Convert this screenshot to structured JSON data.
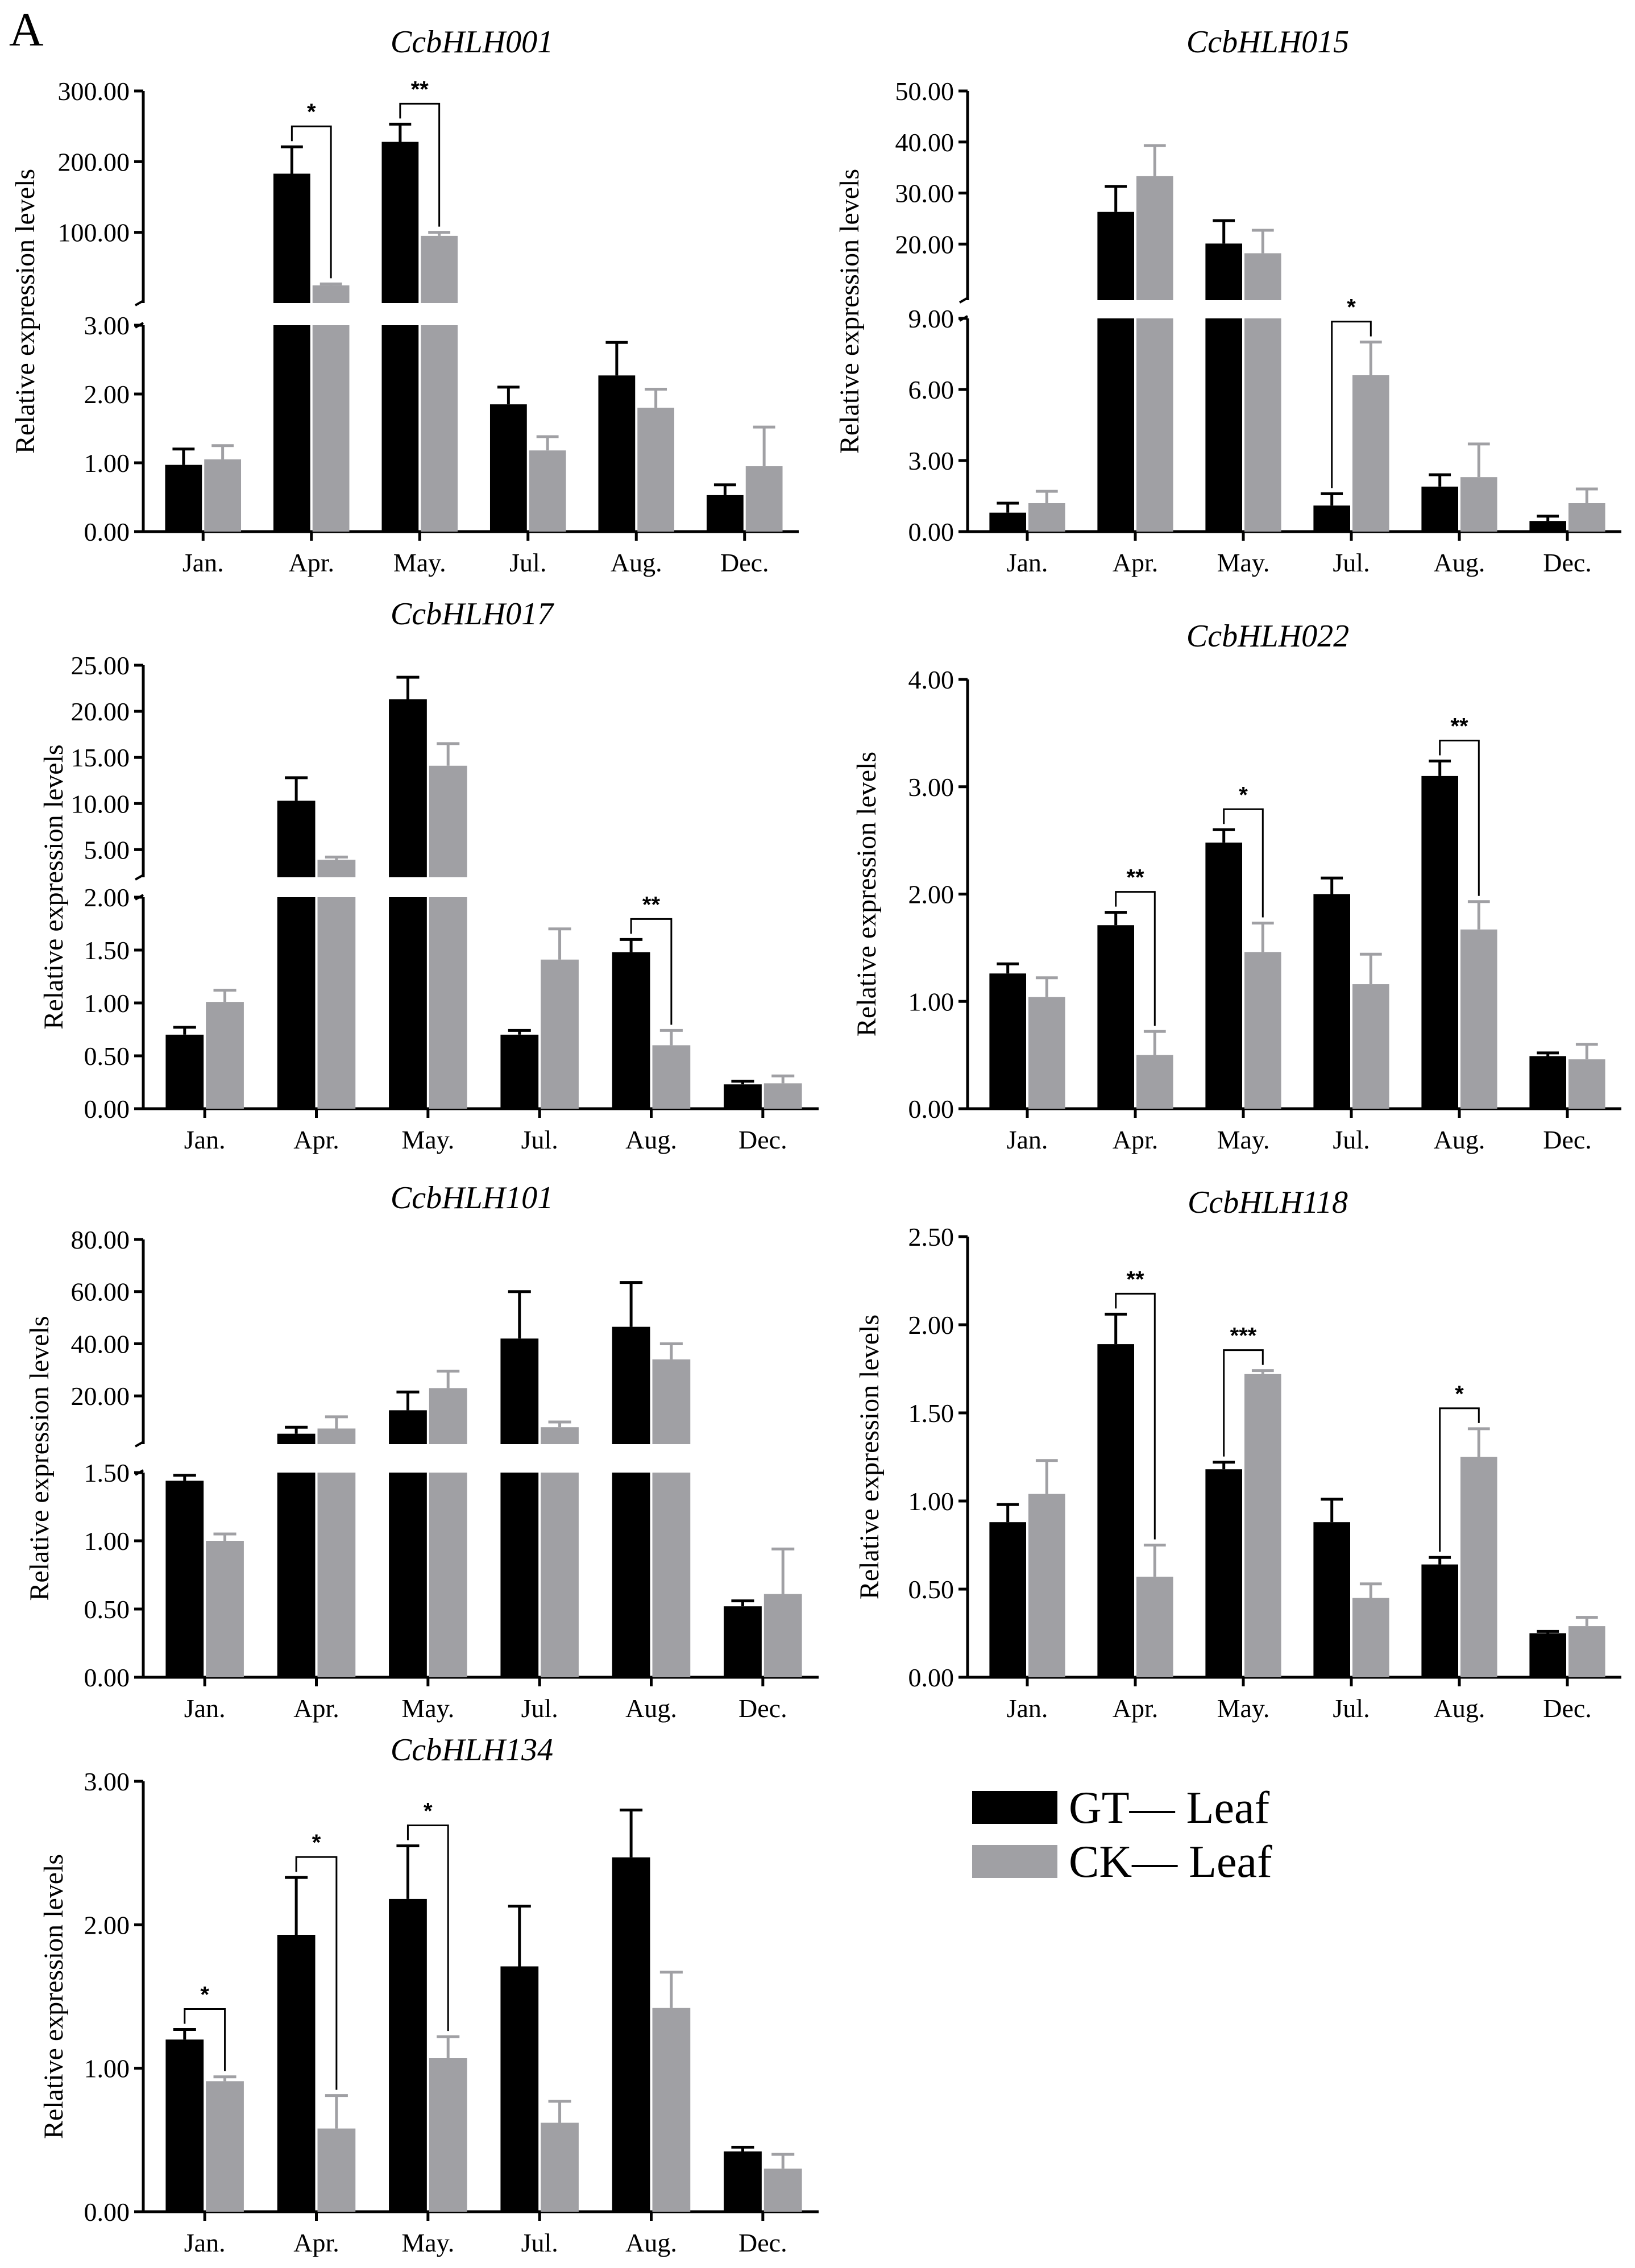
{
  "panel_label": "A",
  "colors": {
    "gt": "#000000",
    "ck": "#a0a0a4"
  },
  "legend": {
    "placement": "bottom-right",
    "items": [
      {
        "label": "GT— Leaf",
        "color": "#000000"
      },
      {
        "label": "CK— Leaf",
        "color": "#a0a0a4"
      }
    ]
  },
  "chart_data": [
    {
      "type": "bar",
      "title": "CcbHLH001",
      "ylabel": "Relative expression levels",
      "categories": [
        "Jan.",
        "Apr.",
        "May.",
        "Jul.",
        "Aug.",
        "Dec."
      ],
      "broken_axis": true,
      "lower_range": [
        0,
        3
      ],
      "lower_ticks": [
        "0.00",
        "1.00",
        "2.00",
        "3.00"
      ],
      "upper_range": [
        0,
        300
      ],
      "upper_ticks": [
        "100.00",
        "200.00",
        "300.00"
      ],
      "series": [
        {
          "name": "GT— Leaf",
          "values": [
            0.97,
            183,
            228,
            1.85,
            2.27,
            0.53
          ],
          "errors": [
            0.23,
            38,
            25,
            0.25,
            0.48,
            0.15
          ]
        },
        {
          "name": "CK— Leaf",
          "values": [
            1.05,
            25,
            95,
            1.18,
            1.8,
            0.95
          ],
          "errors": [
            0.2,
            2,
            5,
            0.2,
            0.27,
            0.57
          ]
        }
      ],
      "significance": [
        {
          "category": "Apr.",
          "label": "*"
        },
        {
          "category": "May.",
          "label": "**"
        }
      ]
    },
    {
      "type": "bar",
      "title": "CcbHLH015",
      "ylabel": "Relative expression levels",
      "categories": [
        "Jan.",
        "Apr.",
        "May.",
        "Jul.",
        "Aug.",
        "Dec."
      ],
      "broken_axis": true,
      "lower_range": [
        0,
        9
      ],
      "lower_ticks": [
        "0.00",
        "3.00",
        "6.00",
        "9.00"
      ],
      "upper_range": [
        9,
        50
      ],
      "upper_ticks": [
        "20.00",
        "30.00",
        "40.00",
        "50.00"
      ],
      "series": [
        {
          "name": "GT— Leaf",
          "values": [
            0.8,
            26.3,
            20.1,
            1.1,
            1.9,
            0.45
          ],
          "errors": [
            0.4,
            5,
            4.5,
            0.5,
            0.5,
            0.2
          ]
        },
        {
          "name": "CK— Leaf",
          "values": [
            1.2,
            33.3,
            18.2,
            6.6,
            2.3,
            1.2
          ],
          "errors": [
            0.5,
            6,
            4.5,
            1.4,
            1.4,
            0.6
          ]
        }
      ],
      "significance": [
        {
          "category": "Jul.",
          "label": "*"
        }
      ]
    },
    {
      "type": "bar",
      "title": "CcbHLH017",
      "ylabel": "Relative expression levels",
      "categories": [
        "Jan.",
        "Apr.",
        "May.",
        "Jul.",
        "Aug.",
        "Dec."
      ],
      "broken_axis": true,
      "lower_range": [
        0,
        2
      ],
      "lower_ticks": [
        "0.00",
        "0.50",
        "1.00",
        "1.50",
        "2.00"
      ],
      "upper_range": [
        2,
        25
      ],
      "upper_ticks": [
        "5.00",
        "10.00",
        "15.00",
        "20.00",
        "25.00"
      ],
      "series": [
        {
          "name": "GT— Leaf",
          "values": [
            0.7,
            10.3,
            21.3,
            0.7,
            1.48,
            0.23
          ],
          "errors": [
            0.07,
            2.5,
            2.4,
            0.04,
            0.12,
            0.03
          ]
        },
        {
          "name": "CK— Leaf",
          "values": [
            1.01,
            3.9,
            14.1,
            1.41,
            0.6,
            0.24
          ],
          "errors": [
            0.11,
            0.3,
            2.4,
            0.29,
            0.14,
            0.07
          ]
        }
      ],
      "significance": [
        {
          "category": "Aug.",
          "label": "**"
        }
      ]
    },
    {
      "type": "bar",
      "title": "CcbHLH022",
      "ylabel": "Relative expression levels",
      "categories": [
        "Jan.",
        "Apr.",
        "May.",
        "Jul.",
        "Aug.",
        "Dec."
      ],
      "broken_axis": false,
      "lower_range": [
        0,
        4
      ],
      "lower_ticks": [
        "0.00",
        "1.00",
        "2.00",
        "3.00",
        "4.00"
      ],
      "series": [
        {
          "name": "GT— Leaf",
          "values": [
            1.26,
            1.71,
            2.48,
            2.0,
            3.1,
            0.49
          ],
          "errors": [
            0.09,
            0.12,
            0.12,
            0.15,
            0.14,
            0.03
          ]
        },
        {
          "name": "CK— Leaf",
          "values": [
            1.04,
            0.5,
            1.46,
            1.16,
            1.67,
            0.46
          ],
          "errors": [
            0.18,
            0.22,
            0.27,
            0.28,
            0.26,
            0.14
          ]
        }
      ],
      "significance": [
        {
          "category": "Apr.",
          "label": "**"
        },
        {
          "category": "May.",
          "label": "*"
        },
        {
          "category": "Aug.",
          "label": "**"
        }
      ]
    },
    {
      "type": "bar",
      "title": "CcbHLH101",
      "ylabel": "Relative expression levels",
      "categories": [
        "Jan.",
        "Apr.",
        "May.",
        "Jul.",
        "Aug.",
        "Dec."
      ],
      "broken_axis": true,
      "lower_range": [
        0,
        1.5
      ],
      "lower_ticks": [
        "0.00",
        "0.50",
        "1.00",
        "1.50"
      ],
      "upper_range": [
        1.5,
        80
      ],
      "upper_ticks": [
        "20.00",
        "40.00",
        "60.00",
        "80.00"
      ],
      "series": [
        {
          "name": "GT— Leaf",
          "values": [
            1.44,
            5.5,
            14.5,
            42,
            46.5,
            0.52
          ],
          "errors": [
            0.04,
            2.5,
            7,
            18,
            17,
            0.04
          ]
        },
        {
          "name": "CK— Leaf",
          "values": [
            1.0,
            7.5,
            23,
            8,
            34,
            0.61
          ],
          "errors": [
            0.05,
            4.5,
            6.5,
            2,
            6,
            0.33
          ]
        }
      ],
      "significance": []
    },
    {
      "type": "bar",
      "title": "CcbHLH118",
      "ylabel": "Relative expression levels",
      "categories": [
        "Jan.",
        "Apr.",
        "May.",
        "Jul.",
        "Aug.",
        "Dec."
      ],
      "broken_axis": false,
      "lower_range": [
        0,
        2.5
      ],
      "lower_ticks": [
        "0.00",
        "0.50",
        "1.00",
        "1.50",
        "2.00",
        "2.50"
      ],
      "series": [
        {
          "name": "GT— Leaf",
          "values": [
            0.88,
            1.89,
            1.18,
            0.88,
            0.64,
            0.25
          ],
          "errors": [
            0.1,
            0.17,
            0.04,
            0.13,
            0.04,
            0.01
          ]
        },
        {
          "name": "CK— Leaf",
          "values": [
            1.04,
            0.57,
            1.72,
            0.45,
            1.25,
            0.29
          ],
          "errors": [
            0.19,
            0.18,
            0.02,
            0.08,
            0.16,
            0.05
          ]
        }
      ],
      "significance": [
        {
          "category": "Apr.",
          "label": "**"
        },
        {
          "category": "May.",
          "label": "***"
        },
        {
          "category": "Aug.",
          "label": "*"
        }
      ]
    },
    {
      "type": "bar",
      "title": "CcbHLH134",
      "ylabel": "Relative expression levels",
      "categories": [
        "Jan.",
        "Apr.",
        "May.",
        "Jul.",
        "Aug.",
        "Dec."
      ],
      "broken_axis": false,
      "lower_range": [
        0,
        3
      ],
      "lower_ticks": [
        "0.00",
        "1.00",
        "2.00",
        "3.00"
      ],
      "series": [
        {
          "name": "GT— Leaf",
          "values": [
            1.2,
            1.93,
            2.18,
            1.71,
            2.47,
            0.42
          ],
          "errors": [
            0.07,
            0.4,
            0.37,
            0.42,
            0.33,
            0.03
          ]
        },
        {
          "name": "CK— Leaf",
          "values": [
            0.91,
            0.58,
            1.07,
            0.62,
            1.42,
            0.3
          ],
          "errors": [
            0.03,
            0.23,
            0.15,
            0.15,
            0.25,
            0.1
          ]
        }
      ],
      "significance": [
        {
          "category": "Jan.",
          "label": "*"
        },
        {
          "category": "Apr.",
          "label": "*"
        },
        {
          "category": "May.",
          "label": "*"
        }
      ]
    }
  ]
}
